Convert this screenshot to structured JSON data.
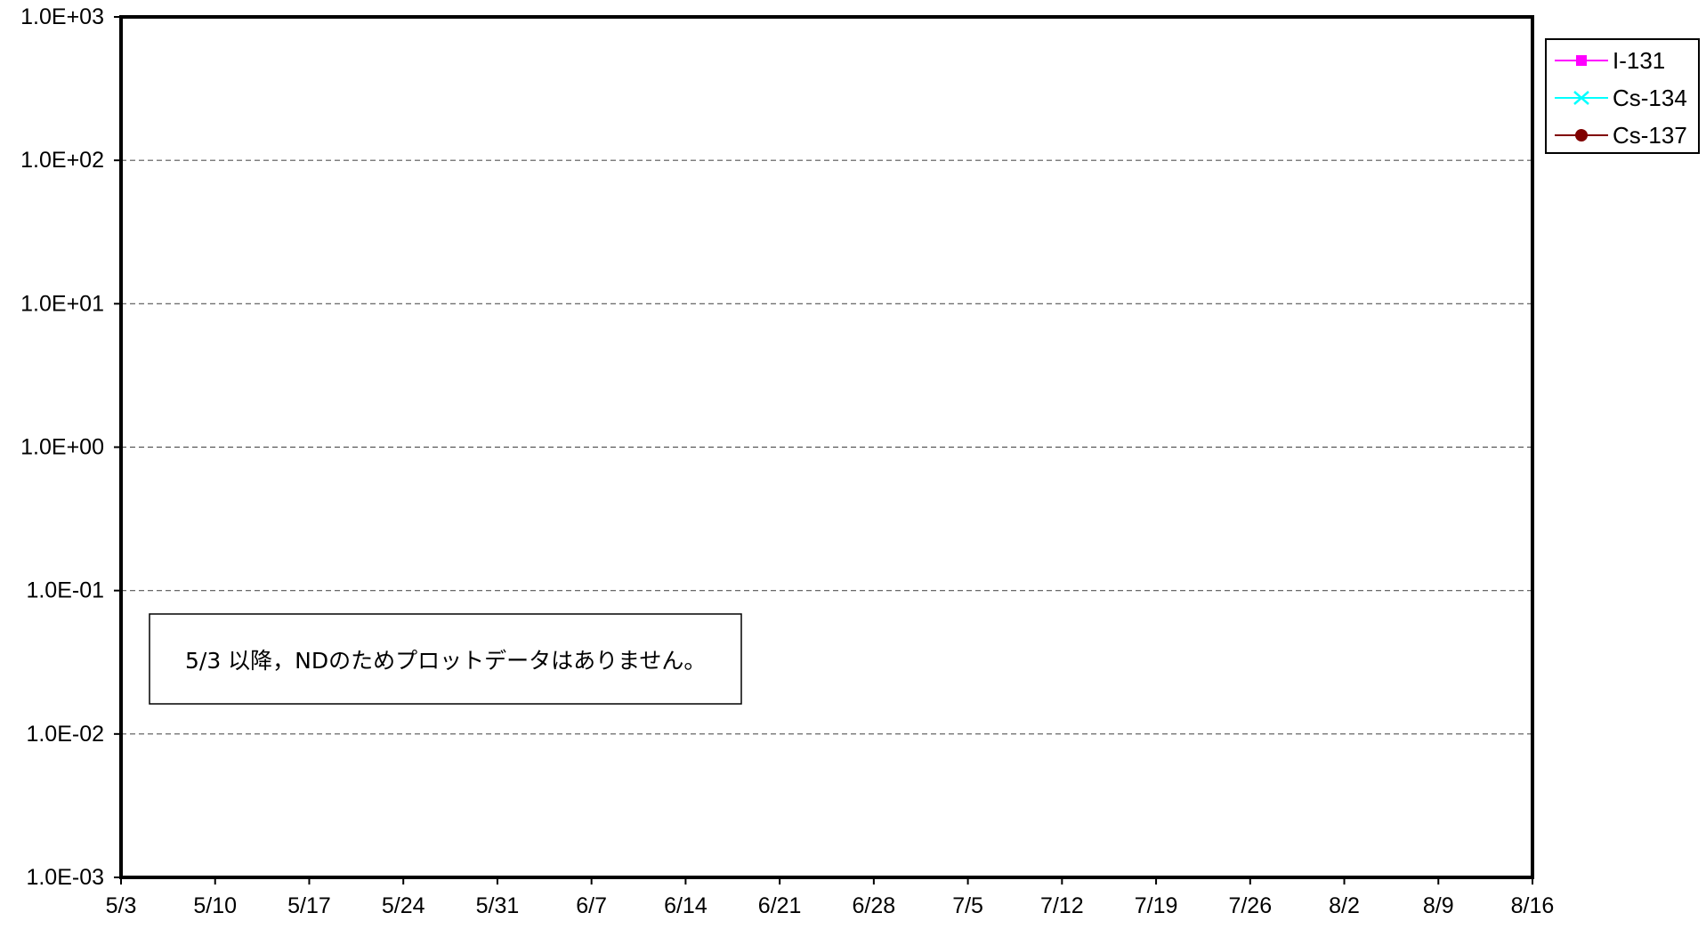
{
  "chart_data": {
    "type": "line",
    "y_scale": "log",
    "ylim": [
      0.001,
      1000
    ],
    "y_ticks": [
      "1.0E+03",
      "1.0E+02",
      "1.0E+01",
      "1.0E+00",
      "1.0E-01",
      "1.0E-02",
      "1.0E-03"
    ],
    "x_tick_labels": [
      "5/3",
      "5/10",
      "5/17",
      "5/24",
      "5/31",
      "6/7",
      "6/14",
      "6/21",
      "6/28",
      "7/5",
      "7/12",
      "7/19",
      "7/26",
      "8/2",
      "8/9",
      "8/16"
    ],
    "grid": "horizontal dashed",
    "legend_position": "top-right, outside plot",
    "series": [
      {
        "name": "I-131",
        "color": "#ff00ff",
        "marker": "square",
        "points": []
      },
      {
        "name": "Cs-134",
        "color": "#00ffff",
        "marker": "x",
        "points": []
      },
      {
        "name": "Cs-137",
        "color": "#800000",
        "marker": "circle",
        "points": []
      }
    ],
    "annotation": "5/3 以降，NDのためプロットデータはありません。"
  }
}
